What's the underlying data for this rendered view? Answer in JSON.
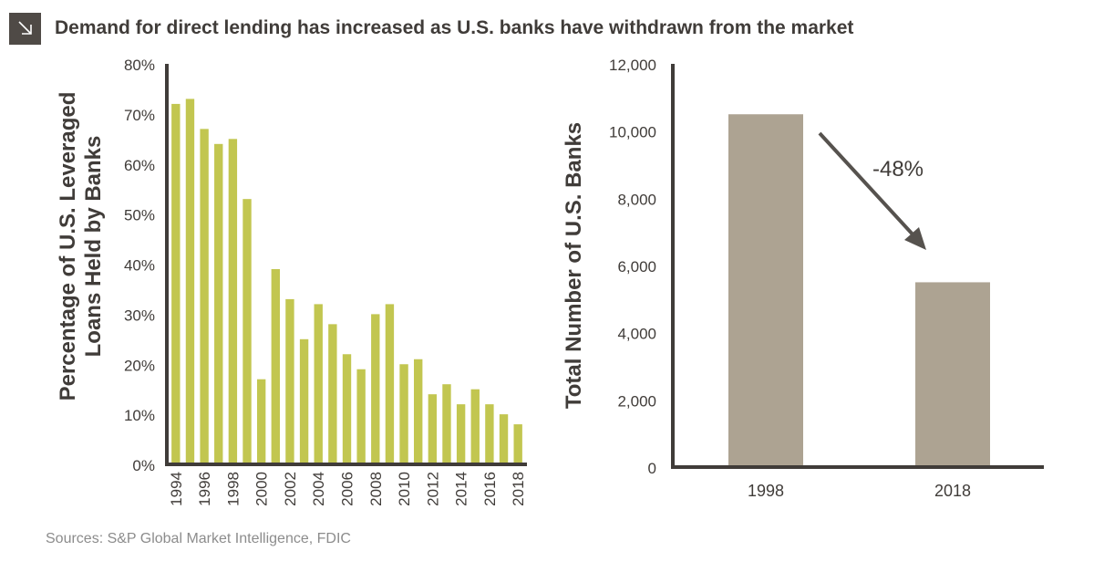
{
  "header": {
    "icon": "arrow-down-right-icon",
    "title": "Demand for direct lending has increased as U.S. banks have withdrawn from the market"
  },
  "source": "Sources: S&P Global Market Intelligence, FDIC",
  "colors": {
    "left_bar": "#c2c650",
    "right_bar": "#ada392",
    "axis": "#403c39",
    "arrow": "#56524e",
    "text": "#403c39",
    "icon_bg": "#4f4a46"
  },
  "chart_data": [
    {
      "type": "bar",
      "title": "",
      "ylabel": "Percentage of U.S. Leveraged Loans Held by Banks",
      "ylabel_lines": [
        "Percentage of U.S. Leveraged",
        "Loans Held by Banks"
      ],
      "xlabel": "",
      "ylim": [
        0,
        80
      ],
      "yticks": [
        0,
        10,
        20,
        30,
        40,
        50,
        60,
        70,
        80
      ],
      "ytick_labels": [
        "0%",
        "10%",
        "20%",
        "30%",
        "40%",
        "50%",
        "60%",
        "70%",
        "80%"
      ],
      "categories": [
        "1994",
        "1995",
        "1996",
        "1997",
        "1998",
        "1999",
        "2000",
        "2001",
        "2002",
        "2003",
        "2004",
        "2005",
        "2006",
        "2007",
        "2008",
        "2009",
        "2010",
        "2011",
        "2012",
        "2013",
        "2014",
        "2015",
        "2016",
        "2017",
        "2018"
      ],
      "xtick_labels": [
        "1994",
        "1996",
        "1998",
        "2000",
        "2002",
        "2004",
        "2006",
        "2008",
        "2010",
        "2012",
        "2014",
        "2016",
        "2018"
      ],
      "values": [
        72,
        73,
        67,
        64,
        65,
        53,
        17,
        39,
        33,
        25,
        32,
        28,
        22,
        19,
        30,
        32,
        20,
        21,
        14,
        16,
        12,
        15,
        12,
        10,
        8
      ]
    },
    {
      "type": "bar",
      "title": "",
      "ylabel": "Total Number of U.S. Banks",
      "xlabel": "",
      "ylim": [
        0,
        12000
      ],
      "yticks": [
        0,
        2000,
        4000,
        6000,
        8000,
        10000,
        12000
      ],
      "ytick_labels": [
        "0",
        "2,000",
        "4,000",
        "6,000",
        "8,000",
        "10,000",
        "12,000"
      ],
      "categories": [
        "1998",
        "2018"
      ],
      "values": [
        10500,
        5500
      ],
      "annotation": "-48%"
    }
  ]
}
